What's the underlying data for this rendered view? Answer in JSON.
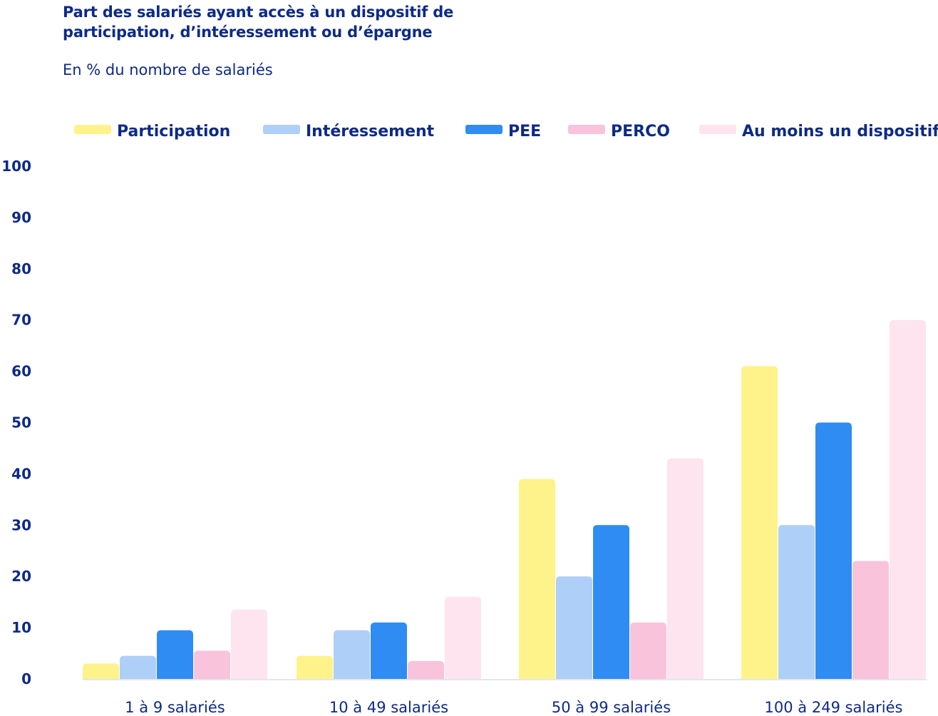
{
  "chart_data": {
    "type": "bar",
    "title": "Part des salariés ayant accès à un dispositif de participation, d’intéressement ou d’épargne",
    "subtitle": "En % du nombre de salariés",
    "categories": [
      "1 à 9 salariés",
      "10 à 49 salariés",
      "50 à 99 salariés",
      "100 à 249 salariés"
    ],
    "series": [
      {
        "name": "Participation",
        "color": "#fdf38a",
        "values": [
          3,
          4.5,
          39,
          61
        ]
      },
      {
        "name": "Intéressement",
        "color": "#aecff8",
        "values": [
          4.5,
          9.5,
          20,
          30
        ]
      },
      {
        "name": "PEE",
        "color": "#2f8cf2",
        "values": [
          9.5,
          11,
          30,
          50
        ]
      },
      {
        "name": "PERCO",
        "color": "#f9c3dc",
        "values": [
          5.5,
          3.5,
          11,
          23
        ]
      },
      {
        "name": "Au moins un dispositif",
        "color": "#fde4ee",
        "values": [
          13.5,
          16,
          43,
          70
        ]
      }
    ],
    "yticks": [
      0,
      10,
      20,
      30,
      40,
      50,
      60,
      70,
      80,
      90,
      100
    ],
    "ylim": [
      0,
      100
    ],
    "xlabel": "",
    "ylabel": "",
    "legend_position": "top",
    "grid": false
  }
}
